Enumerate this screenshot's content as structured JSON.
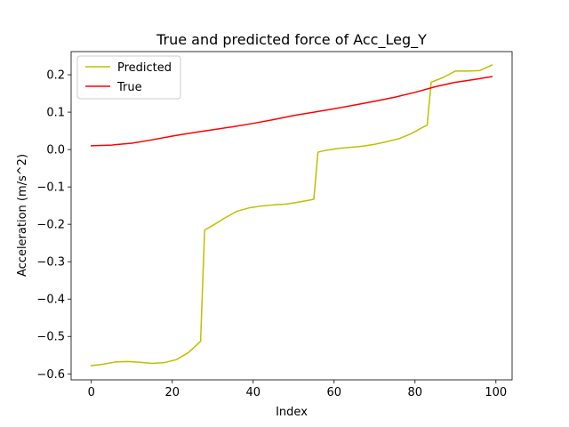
{
  "chart_data": {
    "type": "line",
    "title": "True and predicted force of Acc_Leg_Y",
    "xlabel": "Index",
    "ylabel": "Acceleration (m/s^2)",
    "xlim": [
      -5,
      104
    ],
    "ylim": [
      -0.616,
      0.262
    ],
    "x_ticks": [
      0,
      20,
      40,
      60,
      80,
      100
    ],
    "y_ticks": [
      -0.6,
      -0.5,
      -0.4,
      -0.3,
      -0.2,
      -0.1,
      0.0,
      0.1,
      0.2
    ],
    "x_tick_labels": [
      "0",
      "20",
      "40",
      "60",
      "80",
      "100"
    ],
    "y_tick_labels": [
      "−0.6",
      "−0.5",
      "−0.4",
      "−0.3",
      "−0.2",
      "−0.1",
      "0.0",
      "0.1",
      "0.2"
    ],
    "grid": false,
    "legend_position": "top-left",
    "series": [
      {
        "name": "Predicted",
        "color": "#bfbf00",
        "x": [
          0,
          3,
          6,
          9,
          12,
          15,
          18,
          21,
          24,
          27,
          28,
          30,
          33,
          36,
          39,
          42,
          45,
          48,
          51,
          54,
          55,
          56,
          58,
          61,
          64,
          67,
          70,
          73,
          76,
          79,
          82,
          83,
          84,
          87,
          90,
          93,
          96,
          99
        ],
        "y": [
          -0.578,
          -0.574,
          -0.568,
          -0.567,
          -0.569,
          -0.572,
          -0.57,
          -0.562,
          -0.543,
          -0.513,
          -0.215,
          -0.203,
          -0.183,
          -0.165,
          -0.156,
          -0.151,
          -0.148,
          -0.146,
          -0.141,
          -0.135,
          -0.133,
          -0.007,
          -0.002,
          0.003,
          0.006,
          0.009,
          0.014,
          0.021,
          0.029,
          0.042,
          0.06,
          0.065,
          0.18,
          0.193,
          0.21,
          0.21,
          0.211,
          0.226
        ]
      },
      {
        "name": "True",
        "color": "#ff0000",
        "x": [
          0,
          5,
          10,
          15,
          20,
          25,
          30,
          35,
          40,
          45,
          50,
          55,
          60,
          65,
          70,
          75,
          80,
          85,
          90,
          95,
          99
        ],
        "y": [
          0.01,
          0.012,
          0.017,
          0.026,
          0.036,
          0.045,
          0.053,
          0.061,
          0.07,
          0.08,
          0.091,
          0.1,
          0.109,
          0.119,
          0.129,
          0.14,
          0.153,
          0.168,
          0.18,
          0.188,
          0.195
        ]
      }
    ]
  }
}
